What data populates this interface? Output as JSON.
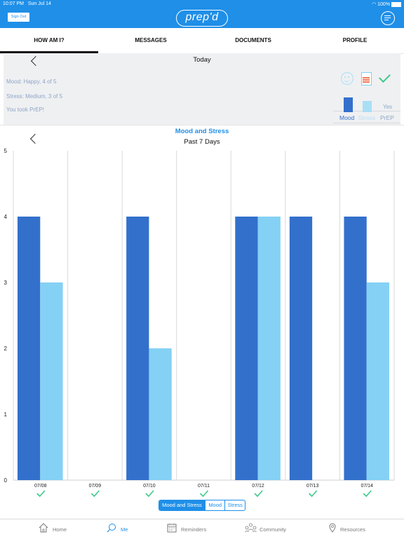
{
  "status_bar": {
    "time": "10:07 PM",
    "date": "Sun Jul 14",
    "battery": "100%"
  },
  "header": {
    "sign_out": "Sign Out",
    "logo": "prep'd",
    "chat_icon": "chat-menu-icon"
  },
  "tabs": [
    {
      "label": "HOW AM I?",
      "active": true
    },
    {
      "label": "MESSAGES",
      "active": false
    },
    {
      "label": "DOCUMENTS",
      "active": false
    },
    {
      "label": "PROFILE",
      "active": false
    }
  ],
  "today": {
    "title": "Today",
    "mood": "Mood: Happy, 4 of 5",
    "stress": "Stress: Medium, 3 of 5",
    "prep": "You took PrEP!",
    "prep_value": "Yes",
    "mini_labels": [
      "Mood",
      "Stress",
      "PrEP"
    ],
    "mini_values": {
      "mood": 4,
      "stress": 3
    },
    "icons": [
      "smiley-icon",
      "stress-meter-icon",
      "checkmark-icon"
    ]
  },
  "chart_section": {
    "title": "Mood and Stress",
    "subtitle": "Past 7 Days"
  },
  "chart_data": {
    "type": "bar",
    "title": "Mood and Stress",
    "subtitle": "Past 7 Days",
    "categories": [
      "07/08",
      "07/09",
      "07/10",
      "07/11",
      "07/12",
      "07/13",
      "07/14"
    ],
    "series": [
      {
        "values": [
          4,
          null,
          4,
          null,
          4,
          4,
          4
        ]
      },
      {
        "values": [
          3,
          null,
          2,
          null,
          4,
          null,
          3
        ]
      }
    ],
    "prep_taken": [
      true,
      true,
      true,
      true,
      true,
      true,
      true
    ],
    "ylim": [
      0,
      5
    ],
    "yticks": [
      "0",
      "1",
      "2",
      "3",
      "4",
      "5"
    ],
    "grid": "vertical"
  },
  "colors": {
    "brand": "#1f8fe8",
    "mood": "#3370cc",
    "stress": "#84d1f5",
    "check": "#3dc98a"
  },
  "segmented": [
    "Mood and Stress",
    "Mood",
    "Stress"
  ],
  "bottom_nav": [
    "Home",
    "Me",
    "Reminders",
    "Community",
    "Resources"
  ]
}
